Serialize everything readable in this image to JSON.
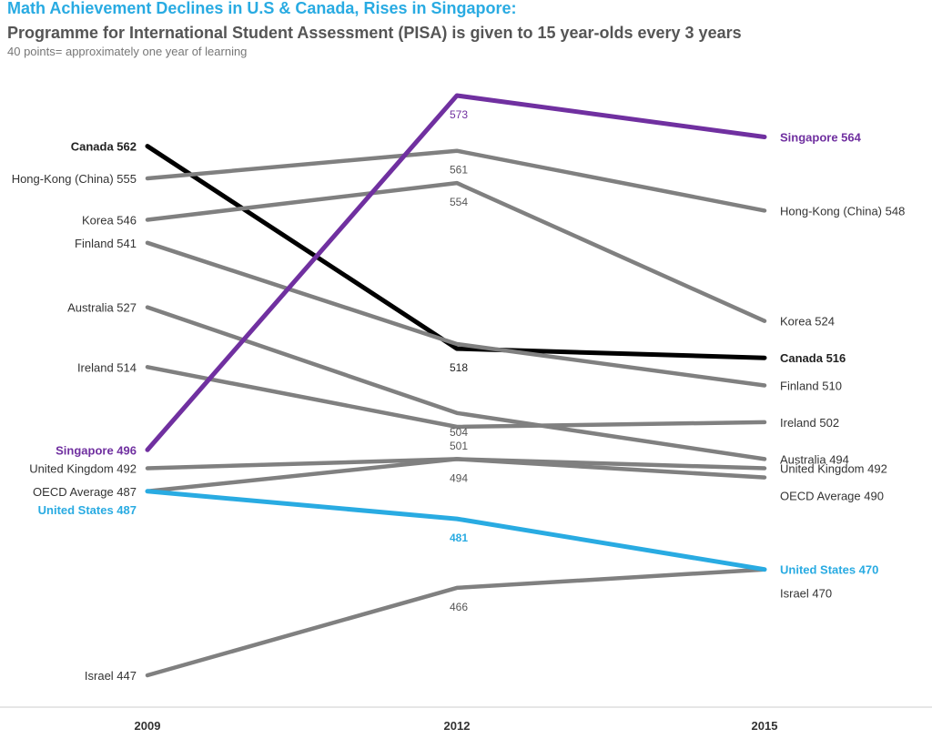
{
  "header": {
    "title": "Math Achievement Declines in U.S & Canada, Rises in Singapore:",
    "subtitle": "Programme for International Student Assessment (PISA) is given to 15 year-olds every 3 years",
    "note": "40 points= approximately one year of learning"
  },
  "chart_data": {
    "type": "line",
    "title": "Math Achievement Declines in U.S & Canada, Rises in Singapore:",
    "subtitle": "Programme for International Student Assessment (PISA) is given to 15 year-olds every 3 years",
    "x": [
      "2009",
      "2012",
      "2015"
    ],
    "xlabel": "",
    "ylabel": "",
    "ylim": [
      447,
      573
    ],
    "grid": false,
    "legend": "none",
    "series": [
      {
        "name": "Canada",
        "values": [
          562,
          518,
          516
        ],
        "color": "#000000",
        "labels": [
          "Canada 562",
          "518",
          "Canada 516"
        ]
      },
      {
        "name": "Hong-Kong (China)",
        "values": [
          555,
          561,
          548
        ],
        "color": "#808080",
        "labels": [
          "Hong-Kong (China) 555",
          "561",
          "Hong-Kong (China) 548"
        ]
      },
      {
        "name": "Korea",
        "values": [
          546,
          554,
          524
        ],
        "color": "#808080",
        "labels": [
          "Korea 546",
          "554",
          "Korea 524"
        ]
      },
      {
        "name": "Finland",
        "values": [
          541,
          519,
          510
        ],
        "color": "#808080",
        "labels": [
          "Finland 541",
          "",
          "Finland 510"
        ]
      },
      {
        "name": "Australia",
        "values": [
          527,
          504,
          494
        ],
        "color": "#808080",
        "labels": [
          "Australia 527",
          "504",
          "Australia 494"
        ]
      },
      {
        "name": "Ireland",
        "values": [
          514,
          501,
          502
        ],
        "color": "#808080",
        "labels": [
          "Ireland 514",
          "501",
          "Ireland 502"
        ]
      },
      {
        "name": "United Kingdom",
        "values": [
          492,
          494,
          492
        ],
        "color": "#808080",
        "labels": [
          "United Kingdom 492",
          "494",
          "United Kingdom 492"
        ]
      },
      {
        "name": "OECD Average",
        "values": [
          487,
          494,
          490
        ],
        "color": "#808080",
        "labels": [
          "OECD Average 487",
          "",
          "OECD Average 490"
        ]
      },
      {
        "name": "Israel",
        "values": [
          447,
          466,
          470
        ],
        "color": "#808080",
        "labels": [
          "Israel 447",
          "466",
          "Israel 470"
        ]
      },
      {
        "name": "United States",
        "values": [
          487,
          481,
          470
        ],
        "color": "#29abe2",
        "labels": [
          "United States 487",
          "481",
          "United States 470"
        ]
      },
      {
        "name": "Singapore",
        "values": [
          496,
          573,
          564
        ],
        "color": "#7030a0",
        "labels": [
          "Singapore 496",
          "573",
          "Singapore 564"
        ]
      }
    ]
  }
}
